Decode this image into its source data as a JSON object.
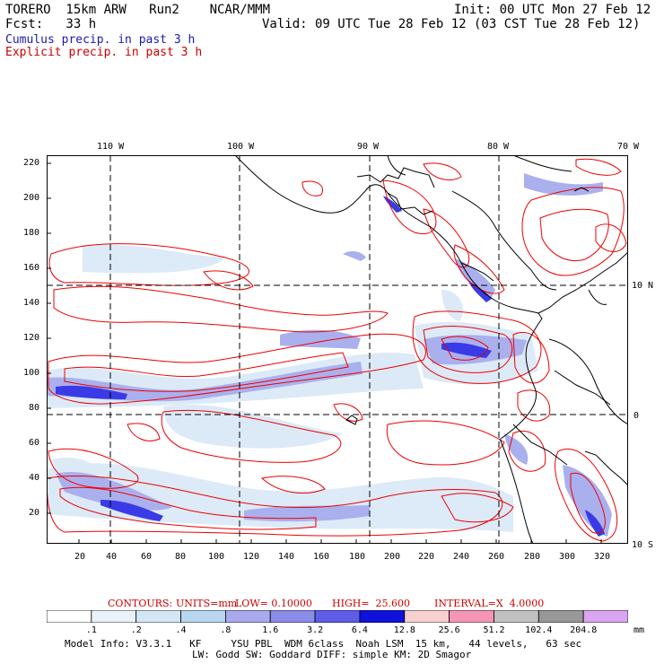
{
  "header": {
    "model": "TORERO  15km ARW   Run2    NCAR/MMM",
    "init": "Init: 00 UTC Mon 27 Feb 12",
    "fcst": "Fcst:   33 h",
    "valid": "Valid: 09 UTC Tue 28 Feb 12 (03 CST Tue 28 Feb 12)",
    "cumulus": "Cumulus precip. in past 3 h",
    "explicit": "Explicit precip. in past 3 h"
  },
  "colors": {
    "cumulus_text": "#1a1ab0",
    "explicit_text": "#cc0000",
    "contour": "#ee0000",
    "coast": "#000000"
  },
  "map": {
    "lon_labels": [
      "110 W",
      "100 W",
      "90 W",
      "80 W",
      "70 W"
    ],
    "lat_labels": [
      "10 N",
      "0",
      "10 S"
    ],
    "y_ticks": [
      "220",
      "200",
      "180",
      "160",
      "140",
      "120",
      "100",
      "80",
      "60",
      "40",
      "20"
    ],
    "x_ticks": [
      "20",
      "40",
      "60",
      "80",
      "100",
      "120",
      "140",
      "160",
      "180",
      "200",
      "220",
      "240",
      "260",
      "280",
      "300",
      "320"
    ]
  },
  "contours": {
    "label": "CONTOURS:",
    "units": "UNITS=mm",
    "low": "LOW= 0.10000",
    "high": "HIGH=  25.600",
    "interval": "INTERVAL=X  4.0000"
  },
  "legend": {
    "colors": [
      "#ffffff",
      "#e9f2fb",
      "#d3e6f6",
      "#b8d6f0",
      "#a9a9ee",
      "#8b8be8",
      "#5d5de8",
      "#1111dd",
      "#f8d0d0",
      "#f595b5",
      "#c0c0c0",
      "#989898",
      "#d9a6f2"
    ],
    "labels": [
      ".1",
      ".2",
      ".4",
      ".8",
      "1.6",
      "3.2",
      "6.4",
      "12.8",
      "25.6",
      "51.2",
      "102.4",
      "204.8"
    ],
    "unit": "mm"
  },
  "model_info": {
    "line1": "Model Info: V3.3.1   KF     YSU PBL  WDM 6class  Noah LSM  15 km,   44 levels,   63 sec",
    "line2": "LW: Godd SW: Goddard DIFF: simple KM: 2D Smagor"
  }
}
